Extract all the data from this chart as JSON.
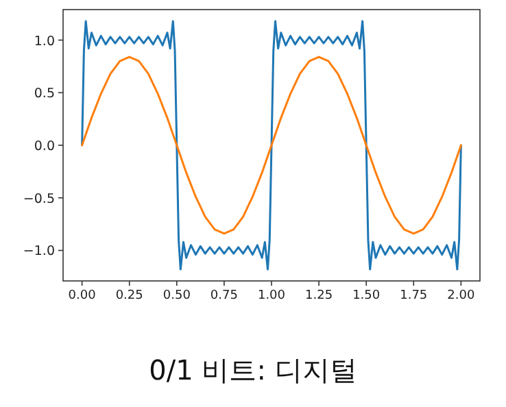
{
  "chart_data": {
    "type": "line",
    "xlim": [
      -0.1,
      2.1
    ],
    "ylim": [
      -1.29,
      1.29
    ],
    "xticks": [
      {
        "value": 0,
        "label": "0.00"
      },
      {
        "value": 0.25,
        "label": "0.25"
      },
      {
        "value": 0.5,
        "label": "0.50"
      },
      {
        "value": 0.75,
        "label": "0.75"
      },
      {
        "value": 1,
        "label": "1.00"
      },
      {
        "value": 1.25,
        "label": "1.25"
      },
      {
        "value": 1.5,
        "label": "1.50"
      },
      {
        "value": 1.75,
        "label": "1.75"
      },
      {
        "value": 2,
        "label": "2.00"
      }
    ],
    "yticks": [
      {
        "value": -1,
        "label": "−1.0"
      },
      {
        "value": -0.5,
        "label": "−0.5"
      },
      {
        "value": 0,
        "label": "0.0"
      },
      {
        "value": 0.5,
        "label": "0.5"
      },
      {
        "value": 1,
        "label": "1.0"
      }
    ],
    "annotations": [
      "0/1 비트: 디지털"
    ],
    "series": [
      {
        "color": "#1f77b4",
        "x": [
          0,
          0.01,
          0.02,
          0.035,
          0.05,
          0.075,
          0.1,
          0.125,
          0.15,
          0.175,
          0.2,
          0.225,
          0.25,
          0.275,
          0.3,
          0.325,
          0.35,
          0.375,
          0.4,
          0.425,
          0.45,
          0.465,
          0.48,
          0.49,
          0.5,
          0.51,
          0.52,
          0.535,
          0.55,
          0.575,
          0.6,
          0.625,
          0.65,
          0.675,
          0.7,
          0.725,
          0.75,
          0.775,
          0.8,
          0.825,
          0.85,
          0.875,
          0.9,
          0.925,
          0.95,
          0.965,
          0.98,
          0.99,
          1,
          1.01,
          1.02,
          1.035,
          1.05,
          1.075,
          1.1,
          1.125,
          1.15,
          1.175,
          1.2,
          1.225,
          1.25,
          1.275,
          1.3,
          1.325,
          1.35,
          1.375,
          1.4,
          1.425,
          1.45,
          1.465,
          1.48,
          1.49,
          1.5,
          1.51,
          1.52,
          1.535,
          1.55,
          1.575,
          1.6,
          1.625,
          1.65,
          1.675,
          1.7,
          1.725,
          1.75,
          1.775,
          1.8,
          1.825,
          1.85,
          1.875,
          1.9,
          1.925,
          1.95,
          1.965,
          1.98,
          1.99,
          2
        ],
        "values": [
          0,
          0.9,
          1.18,
          0.92,
          1.07,
          0.95,
          1.04,
          0.96,
          1.03,
          0.97,
          1.03,
          0.97,
          1.03,
          0.97,
          1.03,
          0.97,
          1.03,
          0.96,
          1.04,
          0.95,
          1.07,
          0.92,
          1.18,
          0.9,
          0,
          -0.9,
          -1.18,
          -0.92,
          -1.07,
          -0.95,
          -1.04,
          -0.96,
          -1.03,
          -0.97,
          -1.03,
          -0.97,
          -1.03,
          -0.97,
          -1.03,
          -0.97,
          -1.03,
          -0.96,
          -1.04,
          -0.95,
          -1.07,
          -0.92,
          -1.18,
          -0.9,
          0,
          0.9,
          1.18,
          0.92,
          1.07,
          0.95,
          1.04,
          0.96,
          1.03,
          0.97,
          1.03,
          0.97,
          1.03,
          0.97,
          1.03,
          0.97,
          1.03,
          0.96,
          1.04,
          0.95,
          1.07,
          0.92,
          1.18,
          0.9,
          0,
          -0.9,
          -1.18,
          -0.92,
          -1.07,
          -0.95,
          -1.04,
          -0.96,
          -1.03,
          -0.97,
          -1.03,
          -0.97,
          -1.03,
          -0.97,
          -1.03,
          -0.97,
          -1.03,
          -0.96,
          -1.04,
          -0.95,
          -1.07,
          -0.92,
          -1.18,
          -0.9,
          0
        ]
      },
      {
        "color": "#ff7f0e",
        "x": [
          0,
          0.05,
          0.1,
          0.15,
          0.2,
          0.25,
          0.3,
          0.35,
          0.4,
          0.45,
          0.5,
          0.55,
          0.6,
          0.65,
          0.7,
          0.75,
          0.8,
          0.85,
          0.9,
          0.95,
          1,
          1.05,
          1.1,
          1.15,
          1.2,
          1.25,
          1.3,
          1.35,
          1.4,
          1.45,
          1.5,
          1.55,
          1.6,
          1.65,
          1.7,
          1.75,
          1.8,
          1.85,
          1.9,
          1.95,
          2
        ],
        "values": [
          0,
          0.26,
          0.49,
          0.68,
          0.8,
          0.84,
          0.8,
          0.68,
          0.49,
          0.26,
          0,
          -0.26,
          -0.49,
          -0.68,
          -0.8,
          -0.84,
          -0.8,
          -0.68,
          -0.49,
          -0.26,
          0,
          0.26,
          0.49,
          0.68,
          0.8,
          0.84,
          0.8,
          0.68,
          0.49,
          0.26,
          0,
          -0.26,
          -0.49,
          -0.68,
          -0.8,
          -0.84,
          -0.8,
          -0.68,
          -0.49,
          -0.26,
          0
        ]
      }
    ]
  }
}
